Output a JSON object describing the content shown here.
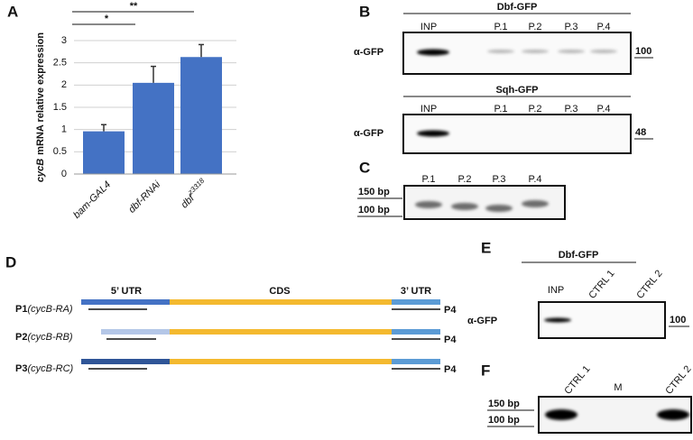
{
  "panel_labels": [
    "A",
    "B",
    "C",
    "D",
    "E",
    "F"
  ],
  "chart_data": {
    "type": "bar",
    "ylabel_parts": [
      "cycB",
      "mRNA relative expression"
    ],
    "categories": [
      "bam-GAL4",
      "dbf-RNAi",
      "dbf"
    ],
    "category_superscripts": [
      null,
      null,
      "z3318"
    ],
    "values": [
      0.96,
      2.05,
      2.63
    ],
    "errors": [
      0.15,
      0.37,
      0.28
    ],
    "color": "#4472c4",
    "ylim": [
      0,
      3
    ],
    "yticks": [
      0,
      0.5,
      1,
      1.5,
      2,
      2.5,
      3
    ],
    "grid": true,
    "annotations": [
      "*",
      "**"
    ]
  },
  "panel_b": {
    "blots": [
      {
        "title": "Dbf-GFP",
        "lanes": [
          "INP",
          "P.1",
          "P.2",
          "P.3",
          "P.4"
        ],
        "antibody": "α-GFP",
        "marker": "100"
      },
      {
        "title": "Sqh-GFP",
        "lanes": [
          "INP",
          "P.1",
          "P.2",
          "P.3",
          "P.4"
        ],
        "antibody": "α-GFP",
        "marker": "48"
      }
    ]
  },
  "panel_c": {
    "lanes": [
      "P.1",
      "P.2",
      "P.3",
      "P.4"
    ],
    "markers": [
      "150 bp",
      "100 bp"
    ]
  },
  "panel_d": {
    "regions": [
      "5’ UTR",
      "CDS",
      "3’ UTR"
    ],
    "transcripts": [
      {
        "primer": "P1",
        "isoform": "(cycB-RA)",
        "reverse_primer": "P4"
      },
      {
        "primer": "P2",
        "isoform": "(cycB-RB)",
        "reverse_primer": "P4"
      },
      {
        "primer": "P3",
        "isoform": "(cycB-RC)",
        "reverse_primer": "P4"
      }
    ]
  },
  "panel_e": {
    "title": "Dbf-GFP",
    "lanes": [
      "INP",
      "CTRL 1",
      "CTRL 2"
    ],
    "antibody": "α-GFP",
    "marker": "100"
  },
  "panel_f": {
    "lanes": [
      "CTRL 1",
      "M",
      "CTRL 2"
    ],
    "markers": [
      "150 bp",
      "100 bp"
    ]
  }
}
